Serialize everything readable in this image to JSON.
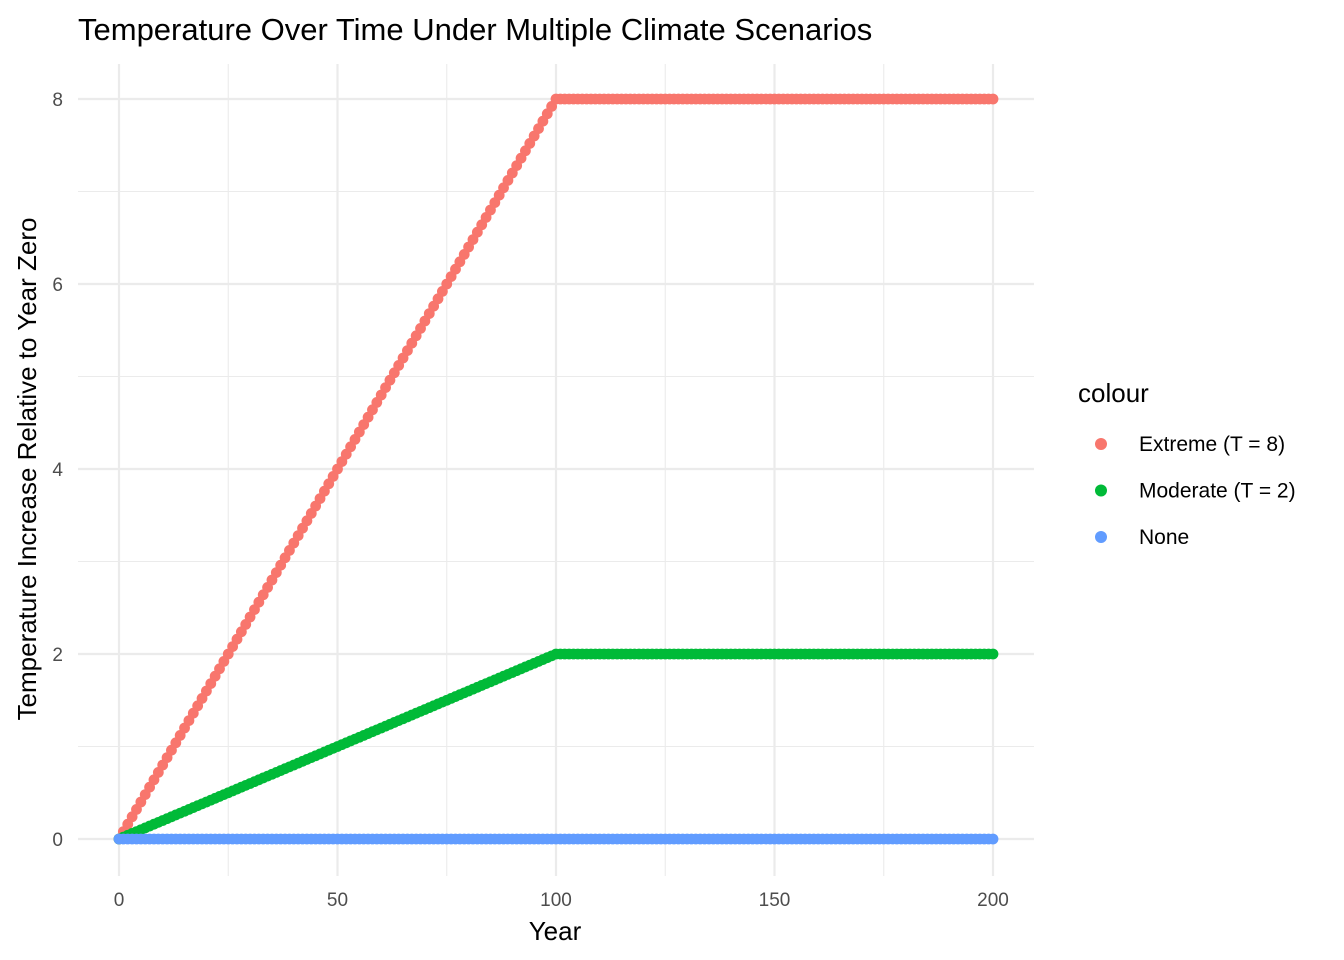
{
  "chart_data": {
    "type": "scatter",
    "title": "Temperature Over Time Under Multiple Climate Scenarios",
    "xlabel": "Year",
    "ylabel": "Temperature Increase Relative to Year Zero",
    "xlim": [
      0,
      200
    ],
    "ylim": [
      0,
      8
    ],
    "x_ticks": [
      0,
      50,
      100,
      150,
      200
    ],
    "y_ticks": [
      0,
      2,
      4,
      6,
      8
    ],
    "x_tick_labels": [
      "0",
      "50",
      "100",
      "150",
      "200"
    ],
    "y_tick_labels": [
      "0",
      "2",
      "4",
      "6",
      "8"
    ],
    "grid": true,
    "legend": {
      "title": "colour",
      "position": "right"
    },
    "x_step": 1,
    "series": [
      {
        "name": "Extreme (T = 8)",
        "color": "#F8766D",
        "ramp_end_year": 100,
        "plateau": 8,
        "x_end": 200
      },
      {
        "name": "Moderate (T = 2)",
        "color": "#00BA38",
        "ramp_end_year": 100,
        "plateau": 2,
        "x_end": 200
      },
      {
        "name": "None",
        "color": "#619CFF",
        "ramp_end_year": 100,
        "plateau": 0,
        "x_end": 200
      }
    ]
  }
}
